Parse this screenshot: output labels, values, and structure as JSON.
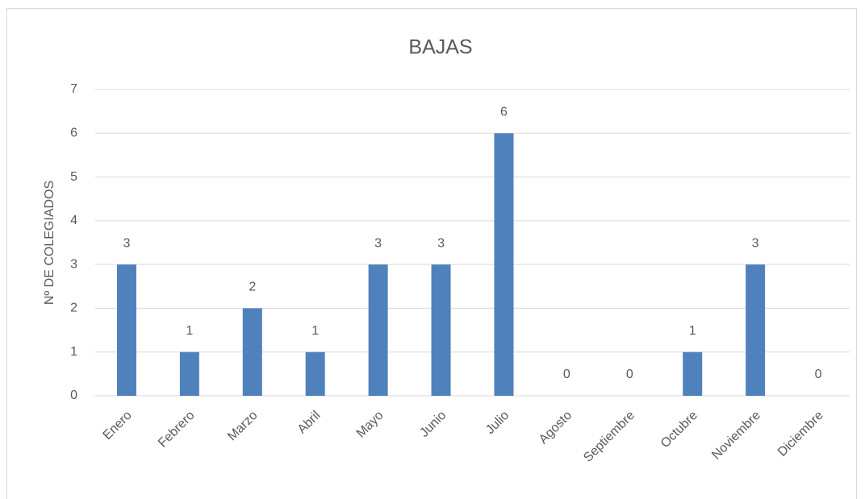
{
  "chart_data": {
    "type": "bar",
    "title": "BAJAS",
    "y_label": "Nº DE COLEGIADOS",
    "categories": [
      "Enero",
      "Febrero",
      "Marzo",
      "Abril",
      "Mayo",
      "Junio",
      "Julio",
      "Agosto",
      "Septiembre",
      "Octubre",
      "Noviembre",
      "Diciembre"
    ],
    "values": [
      3,
      1,
      2,
      1,
      3,
      3,
      6,
      0,
      0,
      1,
      3,
      0
    ],
    "color": "#4f81bd",
    "ylim": [
      0,
      7
    ],
    "yticks": [
      0,
      1,
      2,
      3,
      4,
      5,
      6,
      7
    ],
    "grid": true,
    "data_labels": true
  }
}
